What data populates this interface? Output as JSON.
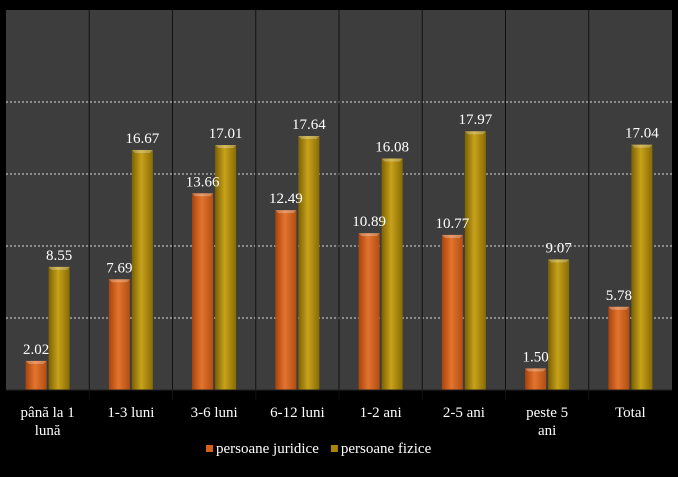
{
  "chart_data": {
    "type": "bar",
    "categories": [
      [
        "până la 1",
        "lună"
      ],
      [
        "1-3 luni"
      ],
      [
        "3-6 luni"
      ],
      [
        "6-12 luni"
      ],
      [
        "1-2 ani"
      ],
      [
        "2-5 ani"
      ],
      [
        "peste 5",
        "ani"
      ],
      [
        "Total"
      ]
    ],
    "series": [
      {
        "name": "persoane juridice",
        "values": [
          2.02,
          7.69,
          13.66,
          12.49,
          10.89,
          10.77,
          1.5,
          5.78
        ],
        "labels": [
          "2.02",
          "7.69",
          "13.66",
          "12.49",
          "10.89",
          "10.77",
          "1.50",
          "5.78"
        ],
        "color": "#d4621c"
      },
      {
        "name": "persoane fizice",
        "values": [
          8.55,
          16.67,
          17.01,
          17.64,
          16.08,
          17.97,
          9.07,
          17.04
        ],
        "labels": [
          "8.55",
          "16.67",
          "17.01",
          "17.64",
          "16.08",
          "17.97",
          "9.07",
          "17.04"
        ],
        "color": "#a8860a"
      }
    ],
    "ylim": [
      0,
      20
    ],
    "grid": true,
    "legend_position": "bottom",
    "title": "",
    "xlabel": "",
    "ylabel": ""
  },
  "colors": {
    "background": "#000000",
    "plot_area": "#3d3d3d",
    "text": "#ffffff",
    "grid": "#bdbdbd"
  }
}
